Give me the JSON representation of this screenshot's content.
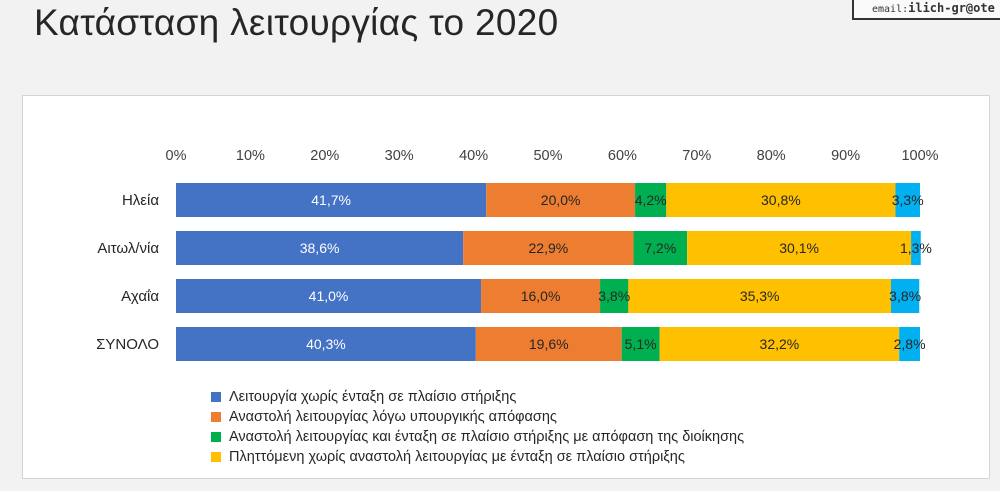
{
  "slide": {
    "title": "Κατάσταση λειτουργίας το 2020",
    "email_prefix": "email:",
    "email_value": "ilich-gr@ote"
  },
  "chart_data": {
    "type": "bar",
    "orientation": "horizontal",
    "stacked": true,
    "title": "",
    "xlabel": "",
    "ylabel": "",
    "xlim": [
      0,
      100
    ],
    "x_ticks": [
      "0%",
      "10%",
      "20%",
      "30%",
      "40%",
      "50%",
      "60%",
      "70%",
      "80%",
      "90%",
      "100%"
    ],
    "x_axis_position": "top",
    "grid": false,
    "legend_position": "bottom",
    "categories": [
      "Ηλεία",
      "Αιτωλ/νία",
      "Αχαΐα",
      "ΣΥΝΟΛΟ"
    ],
    "series": [
      {
        "name": "Λειτουργία χωρίς ένταξη σε πλαίσιο στήριξης",
        "color": "#4472C4",
        "values": [
          41.7,
          38.6,
          41.0,
          40.3
        ],
        "labels": [
          "41,7%",
          "38,6%",
          "41,0%",
          "40,3%"
        ]
      },
      {
        "name": "Αναστολή λειτουργίας λόγω υπουργικής απόφασης",
        "color": "#ED7D31",
        "values": [
          20.0,
          22.9,
          16.0,
          19.6
        ],
        "labels": [
          "20,0%",
          "22,9%",
          "16,0%",
          "19,6%"
        ]
      },
      {
        "name": "Αναστολή λειτουργίας και ένταξη σε πλαίσιο στήριξης με απόφαση της διοίκησης",
        "color": "#00B050",
        "values": [
          4.2,
          7.2,
          3.8,
          5.1
        ],
        "labels": [
          "4,2%",
          "7,2%",
          "3,8%",
          "5,1%"
        ]
      },
      {
        "name": "Πληττόμενη χωρίς αναστολή λειτουργίας με ένταξη σε πλαίσιο στήριξης",
        "color": "#FFC000",
        "values": [
          30.8,
          30.1,
          35.3,
          32.2
        ],
        "labels": [
          "30,8%",
          "30,1%",
          "35,3%",
          "32,2%"
        ]
      },
      {
        "name": "",
        "color": "#00B0F0",
        "values": [
          3.3,
          1.3,
          3.8,
          2.8
        ],
        "labels": [
          "3,3%",
          "1,3%",
          "3,8%",
          "2,8%"
        ]
      }
    ]
  }
}
